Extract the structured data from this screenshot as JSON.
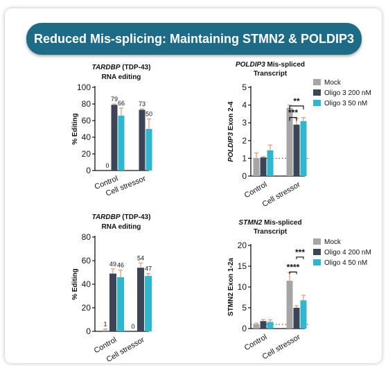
{
  "banner": {
    "title": "Reduced Mis-splicing: Maintaining STMN2 & POLDIP3"
  },
  "colors": {
    "banner": "#1e6b86",
    "mock": "#a6a6a6",
    "oligo_200": "#3b4556",
    "oligo_50": "#2fb7cf",
    "error_bar": "#e8956b"
  },
  "chart_data": [
    {
      "type": "bar",
      "title_italic": "TARDBP",
      "title_rest": " (TDP-43)",
      "subtitle": "RNA editing",
      "ylabel": "% Editing",
      "ylim": [
        0,
        100
      ],
      "yticks": [
        0,
        20,
        40,
        60,
        80,
        100
      ],
      "categories": [
        "Control",
        "Cell stressor"
      ],
      "series": [
        {
          "color": "#a6a6a6",
          "values": [
            0,
            0
          ]
        },
        {
          "color": "#3b4556",
          "values": [
            79,
            73
          ]
        },
        {
          "color": "#2fb7cf",
          "values": [
            66,
            50
          ]
        }
      ],
      "errors": [
        [
          0,
          0
        ],
        [
          1,
          1
        ],
        [
          9,
          12
        ]
      ],
      "value_labels": [
        [
          "0",
          ""
        ],
        [
          "79",
          "73"
        ],
        [
          "66",
          "50"
        ]
      ]
    },
    {
      "type": "bar",
      "title_italic": "POLDIP3",
      "title_rest": " Mis-spliced",
      "subtitle": "Transcript",
      "ylabel_italic": "POLDIP3",
      "ylabel_rest": " Exon 2-4",
      "ylim": [
        0,
        5
      ],
      "yticks": [
        0,
        1,
        2,
        3,
        4,
        5
      ],
      "baseline": 1,
      "categories": [
        "Control",
        "Cell stressor"
      ],
      "series": [
        {
          "name": "Mock",
          "color": "#a6a6a6",
          "values": [
            1.0,
            3.85
          ]
        },
        {
          "name": "Oligo 3 200 nM",
          "color": "#3b4556",
          "values": [
            1.05,
            2.9
          ]
        },
        {
          "name": "Oligo 3 50 nM",
          "color": "#2fb7cf",
          "values": [
            1.45,
            3.1
          ]
        }
      ],
      "errors": [
        [
          0.3,
          0.15
        ],
        [
          0.05,
          0.35
        ],
        [
          0.3,
          0.2
        ]
      ],
      "significance": [
        "**",
        "***"
      ]
    },
    {
      "type": "bar",
      "title_italic": "TARDBP",
      "title_rest": " (TDP-43)",
      "subtitle": "RNA editing",
      "ylabel": "% Editing",
      "ylim": [
        0,
        80
      ],
      "yticks": [
        0,
        20,
        40,
        60,
        80
      ],
      "categories": [
        "Control",
        "Cell stressor"
      ],
      "series": [
        {
          "color": "#a6a6a6",
          "values": [
            1,
            0
          ]
        },
        {
          "color": "#3b4556",
          "values": [
            49,
            54
          ]
        },
        {
          "color": "#2fb7cf",
          "values": [
            46,
            47
          ]
        }
      ],
      "errors": [
        [
          1,
          0
        ],
        [
          4,
          4
        ],
        [
          6,
          2
        ]
      ],
      "value_labels": [
        [
          "1",
          "0"
        ],
        [
          "49",
          "54"
        ],
        [
          "46",
          "47"
        ]
      ]
    },
    {
      "type": "bar",
      "title_italic": "STMN2",
      "title_rest": " Mis-spliced",
      "subtitle": "Transcript",
      "ylabel": "STMN2 Exon 1-2a",
      "ylim": [
        0,
        20
      ],
      "yticks": [
        0,
        5,
        10,
        15,
        20
      ],
      "baseline": 1,
      "categories": [
        "Control",
        "Cell stressor"
      ],
      "series": [
        {
          "name": "Mock",
          "color": "#a6a6a6",
          "values": [
            1.0,
            11.5
          ]
        },
        {
          "name": "Oligo 4 200 nM",
          "color": "#3b4556",
          "values": [
            1.8,
            5.0
          ]
        },
        {
          "name": "Oligo 4 50 nM",
          "color": "#2fb7cf",
          "values": [
            1.6,
            6.8
          ]
        }
      ],
      "errors": [
        [
          0.3,
          2.0
        ],
        [
          0.4,
          0.5
        ],
        [
          0.5,
          1.2
        ]
      ],
      "significance": [
        "***",
        "****"
      ]
    }
  ]
}
